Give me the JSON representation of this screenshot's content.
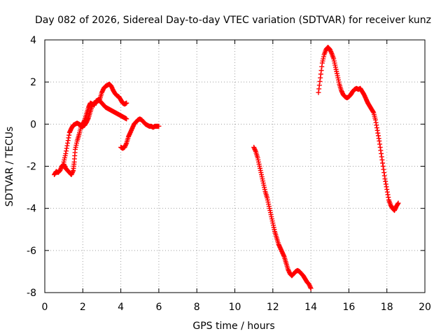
{
  "chart_data": {
    "type": "scatter",
    "title": "Day 082 of 2026, Sidereal Day-to-day VTEC variation (SDTVAR) for receiver kunz",
    "xlabel": "GPS time / hours",
    "ylabel": "SDTVAR / TECUs",
    "xlim": [
      0,
      20
    ],
    "ylim": [
      -8,
      4
    ],
    "x_ticks": [
      "0",
      "2",
      "4",
      "6",
      "8",
      "10",
      "12",
      "14",
      "16",
      "18",
      "20"
    ],
    "y_ticks": [
      "-8",
      "-6",
      "-4",
      "-2",
      "0",
      "2",
      "4"
    ],
    "grid": true,
    "marker": "+",
    "color": "#ff0000",
    "series": [
      {
        "name": "segment-1",
        "points": [
          [
            0.5,
            -2.4
          ],
          [
            0.6,
            -2.25
          ],
          [
            0.7,
            -2.3
          ],
          [
            0.8,
            -2.2
          ],
          [
            0.9,
            -2.0
          ],
          [
            1.0,
            -1.9
          ],
          [
            1.1,
            -2.1
          ],
          [
            1.2,
            -2.2
          ],
          [
            1.3,
            -2.3
          ],
          [
            1.4,
            -2.4
          ],
          [
            1.5,
            -2.2
          ],
          [
            1.55,
            -1.8
          ],
          [
            1.6,
            -1.2
          ],
          [
            1.7,
            -0.8
          ],
          [
            1.8,
            -0.5
          ],
          [
            1.9,
            -0.15
          ],
          [
            2.0,
            -0.1
          ]
        ]
      },
      {
        "name": "segment-2",
        "points": [
          [
            1.0,
            -1.8
          ],
          [
            1.1,
            -1.4
          ],
          [
            1.2,
            -0.9
          ],
          [
            1.3,
            -0.4
          ],
          [
            1.4,
            -0.2
          ],
          [
            1.5,
            -0.05
          ],
          [
            1.6,
            0.0
          ],
          [
            1.7,
            0.05
          ],
          [
            1.8,
            0.0
          ],
          [
            1.9,
            -0.05
          ],
          [
            2.0,
            0.0
          ],
          [
            2.1,
            0.2
          ],
          [
            2.2,
            0.5
          ],
          [
            2.3,
            0.8
          ],
          [
            2.4,
            1.0
          ],
          [
            2.5,
            0.95
          ],
          [
            2.6,
            0.9
          ],
          [
            2.7,
            1.1
          ],
          [
            2.8,
            1.15
          ],
          [
            2.9,
            1.1
          ],
          [
            3.0,
            1.0
          ],
          [
            3.1,
            0.9
          ],
          [
            3.2,
            0.8
          ],
          [
            3.3,
            0.75
          ],
          [
            3.4,
            0.7
          ],
          [
            3.5,
            0.65
          ],
          [
            3.6,
            0.6
          ],
          [
            3.7,
            0.55
          ],
          [
            3.8,
            0.5
          ],
          [
            3.9,
            0.45
          ],
          [
            4.0,
            0.4
          ],
          [
            4.1,
            0.35
          ],
          [
            4.2,
            0.3
          ],
          [
            4.3,
            0.25
          ]
        ]
      },
      {
        "name": "segment-3",
        "points": [
          [
            1.9,
            -0.1
          ],
          [
            2.0,
            -0.1
          ],
          [
            2.1,
            -0.05
          ],
          [
            2.2,
            0.1
          ],
          [
            2.3,
            0.3
          ],
          [
            2.4,
            0.6
          ],
          [
            2.5,
            0.9
          ],
          [
            2.6,
            1.0
          ],
          [
            2.7,
            1.05
          ],
          [
            2.8,
            1.1
          ],
          [
            2.9,
            1.2
          ],
          [
            3.0,
            1.5
          ],
          [
            3.1,
            1.7
          ],
          [
            3.2,
            1.8
          ],
          [
            3.3,
            1.85
          ],
          [
            3.4,
            1.9
          ],
          [
            3.5,
            1.8
          ],
          [
            3.6,
            1.6
          ],
          [
            3.7,
            1.45
          ],
          [
            3.8,
            1.35
          ],
          [
            3.9,
            1.3
          ],
          [
            4.0,
            1.15
          ],
          [
            4.1,
            1.0
          ],
          [
            4.2,
            0.95
          ],
          [
            4.3,
            1.0
          ]
        ]
      },
      {
        "name": "segment-4",
        "points": [
          [
            4.0,
            -1.1
          ],
          [
            4.1,
            -1.15
          ],
          [
            4.2,
            -1.1
          ],
          [
            4.3,
            -0.9
          ],
          [
            4.4,
            -0.6
          ],
          [
            4.5,
            -0.4
          ],
          [
            4.6,
            -0.2
          ],
          [
            4.7,
            0.0
          ],
          [
            4.8,
            0.1
          ],
          [
            4.9,
            0.2
          ],
          [
            5.0,
            0.25
          ],
          [
            5.1,
            0.2
          ],
          [
            5.2,
            0.1
          ],
          [
            5.3,
            0.0
          ],
          [
            5.4,
            -0.05
          ],
          [
            5.5,
            -0.1
          ],
          [
            5.6,
            -0.1
          ],
          [
            5.7,
            -0.15
          ],
          [
            5.8,
            -0.1
          ],
          [
            5.9,
            -0.1
          ],
          [
            6.0,
            -0.1
          ]
        ]
      },
      {
        "name": "segment-5",
        "points": [
          [
            11.0,
            -1.1
          ],
          [
            11.1,
            -1.3
          ],
          [
            11.2,
            -1.6
          ],
          [
            11.3,
            -2.0
          ],
          [
            11.4,
            -2.4
          ],
          [
            11.5,
            -2.8
          ],
          [
            11.6,
            -3.2
          ],
          [
            11.7,
            -3.5
          ],
          [
            11.8,
            -3.9
          ],
          [
            11.9,
            -4.3
          ],
          [
            12.0,
            -4.7
          ],
          [
            12.1,
            -5.1
          ],
          [
            12.2,
            -5.4
          ],
          [
            12.3,
            -5.7
          ],
          [
            12.4,
            -5.9
          ],
          [
            12.5,
            -6.1
          ],
          [
            12.6,
            -6.3
          ],
          [
            12.7,
            -6.6
          ],
          [
            12.8,
            -6.9
          ],
          [
            12.9,
            -7.1
          ],
          [
            13.0,
            -7.2
          ],
          [
            13.1,
            -7.1
          ],
          [
            13.2,
            -7.0
          ],
          [
            13.3,
            -6.95
          ],
          [
            13.4,
            -7.0
          ],
          [
            13.5,
            -7.1
          ],
          [
            13.6,
            -7.2
          ],
          [
            13.7,
            -7.35
          ],
          [
            13.8,
            -7.5
          ],
          [
            13.9,
            -7.6
          ],
          [
            14.0,
            -7.8
          ]
        ]
      },
      {
        "name": "segment-6",
        "points": [
          [
            14.4,
            1.5
          ],
          [
            14.5,
            2.2
          ],
          [
            14.6,
            2.9
          ],
          [
            14.7,
            3.3
          ],
          [
            14.8,
            3.55
          ],
          [
            14.9,
            3.65
          ],
          [
            15.0,
            3.55
          ],
          [
            15.1,
            3.35
          ],
          [
            15.2,
            3.1
          ],
          [
            15.3,
            2.7
          ],
          [
            15.4,
            2.3
          ],
          [
            15.5,
            1.9
          ],
          [
            15.6,
            1.6
          ],
          [
            15.7,
            1.4
          ],
          [
            15.8,
            1.3
          ],
          [
            15.9,
            1.25
          ],
          [
            16.0,
            1.3
          ],
          [
            16.1,
            1.4
          ],
          [
            16.2,
            1.55
          ],
          [
            16.3,
            1.65
          ],
          [
            16.4,
            1.7
          ],
          [
            16.5,
            1.65
          ],
          [
            16.6,
            1.7
          ],
          [
            16.7,
            1.55
          ],
          [
            16.8,
            1.4
          ],
          [
            16.9,
            1.2
          ],
          [
            17.0,
            1.0
          ],
          [
            17.1,
            0.85
          ],
          [
            17.2,
            0.7
          ],
          [
            17.3,
            0.55
          ],
          [
            17.4,
            0.2
          ],
          [
            17.5,
            -0.3
          ],
          [
            17.6,
            -0.8
          ],
          [
            17.7,
            -1.4
          ],
          [
            17.8,
            -2.0
          ],
          [
            17.9,
            -2.6
          ],
          [
            18.0,
            -3.1
          ],
          [
            18.1,
            -3.6
          ],
          [
            18.2,
            -3.85
          ],
          [
            18.3,
            -4.0
          ],
          [
            18.4,
            -4.1
          ],
          [
            18.5,
            -3.9
          ],
          [
            18.6,
            -3.75
          ]
        ]
      }
    ]
  }
}
